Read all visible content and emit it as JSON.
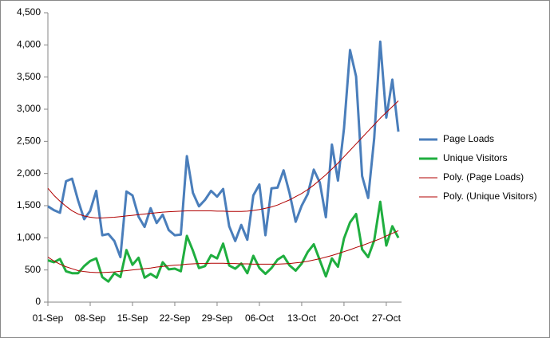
{
  "chart_data": {
    "type": "line",
    "categories": [
      "01-Sep",
      null,
      null,
      null,
      null,
      null,
      null,
      "08-Sep",
      null,
      null,
      null,
      null,
      null,
      null,
      "15-Sep",
      null,
      null,
      null,
      null,
      null,
      null,
      "22-Sep",
      null,
      null,
      null,
      null,
      null,
      null,
      "29-Sep",
      null,
      null,
      null,
      null,
      null,
      null,
      "06-Oct",
      null,
      null,
      null,
      null,
      null,
      null,
      "13-Oct",
      null,
      null,
      null,
      null,
      null,
      null,
      "20-Oct",
      null,
      null,
      null,
      null,
      null,
      null,
      "27-Oct",
      null,
      null
    ],
    "series": [
      {
        "name": "Page Loads",
        "color": "#4a7ebb",
        "width": 3,
        "values": [
          1490,
          1430,
          1390,
          1880,
          1920,
          1580,
          1290,
          1420,
          1730,
          1040,
          1060,
          950,
          700,
          1720,
          1660,
          1330,
          1170,
          1460,
          1230,
          1360,
          1120,
          1040,
          1050,
          2270,
          1700,
          1490,
          1590,
          1730,
          1640,
          1760,
          1180,
          950,
          1200,
          970,
          1660,
          1830,
          1040,
          1770,
          1780,
          2050,
          1690,
          1250,
          1500,
          1680,
          2060,
          1860,
          1320,
          2450,
          1890,
          2700,
          3920,
          3510,
          1960,
          1620,
          2550,
          4050,
          2870,
          3460,
          2650
        ]
      },
      {
        "name": "Unique Visitors",
        "color": "#1fae3f",
        "width": 3,
        "values": [
          650,
          620,
          670,
          480,
          450,
          450,
          560,
          640,
          680,
          390,
          320,
          450,
          390,
          810,
          580,
          690,
          380,
          440,
          380,
          620,
          510,
          520,
          480,
          1030,
          800,
          530,
          560,
          730,
          680,
          910,
          570,
          520,
          600,
          450,
          720,
          530,
          440,
          530,
          660,
          720,
          570,
          490,
          600,
          780,
          900,
          650,
          400,
          680,
          550,
          990,
          1240,
          1370,
          820,
          700,
          960,
          1560,
          880,
          1180,
          1000
        ]
      },
      {
        "name": "Poly. (Page Loads)",
        "color": "#b00000",
        "width": 1,
        "values": [
          1770,
          1660,
          1570,
          1490,
          1420,
          1370,
          1340,
          1320,
          1310,
          1310,
          1315,
          1320,
          1330,
          1340,
          1350,
          1360,
          1370,
          1380,
          1390,
          1400,
          1405,
          1410,
          1415,
          1420,
          1420,
          1420,
          1420,
          1420,
          1415,
          1415,
          1410,
          1410,
          1410,
          1415,
          1425,
          1440,
          1460,
          1480,
          1510,
          1550,
          1590,
          1640,
          1690,
          1750,
          1820,
          1900,
          1980,
          2070,
          2160,
          2260,
          2360,
          2460,
          2560,
          2660,
          2760,
          2860,
          2950,
          3040,
          3130
        ]
      },
      {
        "name": "Poly. (Unique Visitors)",
        "color": "#b00000",
        "width": 1,
        "values": [
          700,
          640,
          590,
          550,
          520,
          490,
          475,
          465,
          460,
          460,
          465,
          470,
          480,
          490,
          500,
          510,
          520,
          530,
          545,
          555,
          565,
          575,
          580,
          590,
          595,
          600,
          600,
          605,
          605,
          605,
          600,
          600,
          595,
          595,
          590,
          590,
          590,
          590,
          590,
          595,
          600,
          610,
          620,
          635,
          655,
          675,
          700,
          725,
          755,
          785,
          815,
          850,
          880,
          915,
          950,
          985,
          1030,
          1070,
          1110
        ]
      }
    ],
    "ylim": [
      0,
      4500
    ],
    "yticks": [
      0,
      {
        "value": 500,
        "label": "500"
      },
      {
        "value": 1000,
        "label": "1,000"
      },
      {
        "value": 1500,
        "label": "1,500"
      },
      {
        "value": 2000,
        "label": "2,000"
      },
      {
        "value": 2500,
        "label": "2,500"
      },
      {
        "value": 3000,
        "label": "3,000"
      },
      {
        "value": 3500,
        "label": "3,500"
      },
      {
        "value": 4000,
        "label": "4,000"
      },
      {
        "value": 4500,
        "label": "4,500"
      }
    ],
    "grid": false,
    "legend": "right"
  }
}
